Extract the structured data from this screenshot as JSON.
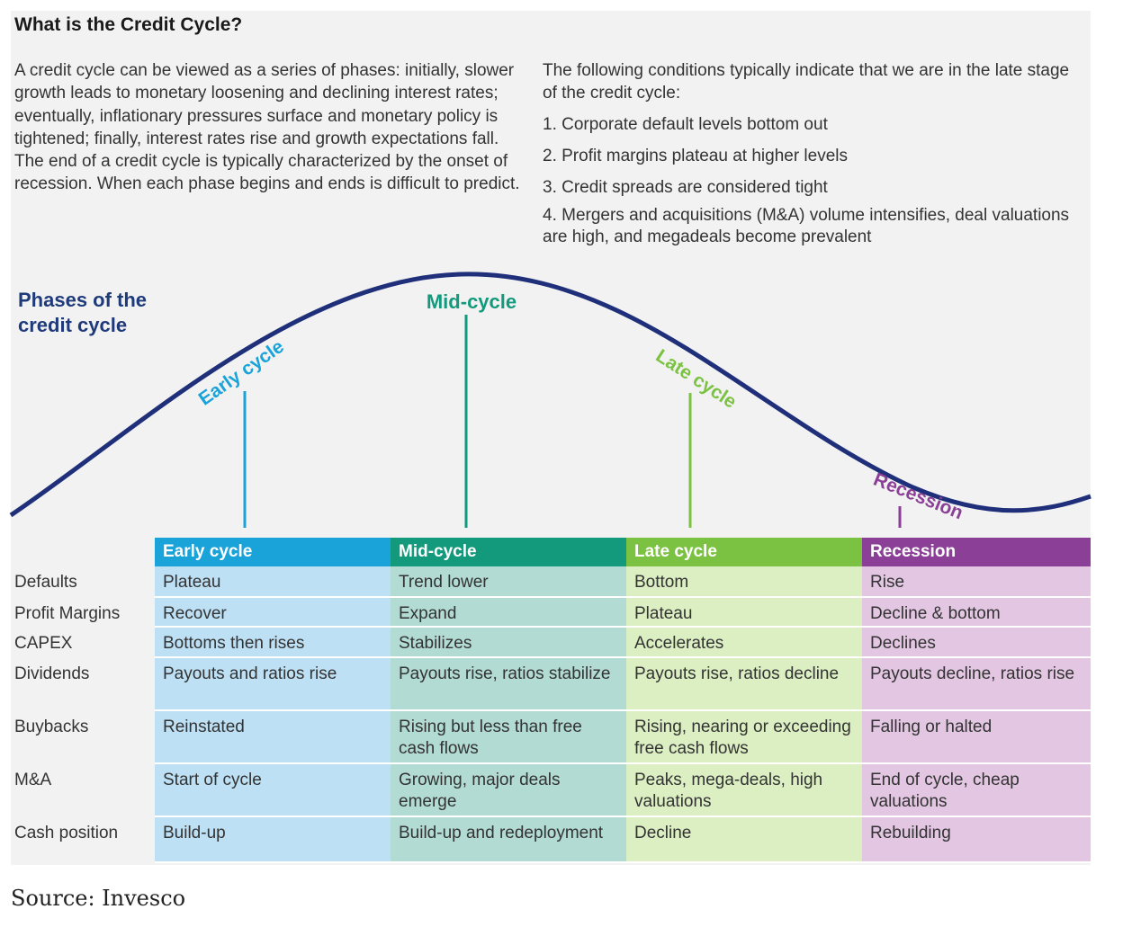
{
  "title": "What is the Credit Cycle?",
  "intro_text": "A credit cycle can be viewed as a series of phases: initially, slower growth leads to monetary loosening and declining interest rates; eventually, inflationary pressures surface and monetary policy is tightened; finally, interest rates rise and growth expectations fall. The end of a credit cycle is typically characterized by the onset of recession. When each phase begins and ends is difficult to predict.",
  "conditions": {
    "intro": "The following conditions typically indicate that we are in the late stage of the credit cycle:",
    "items": [
      "1. Corporate default levels bottom out",
      "2. Profit margins plateau at higher levels",
      "3. Credit spreads are considered tight",
      "4. Mergers and acquisitions (M&A) volume intensifies, deal valuations are high, and megadeals become prevalent"
    ]
  },
  "diagram": {
    "heading": "Phases of the credit cycle",
    "phases": [
      {
        "label": "Early cycle",
        "color": "#1aa3d9"
      },
      {
        "label": "Mid-cycle",
        "color": "#139a7c"
      },
      {
        "label": "Late cycle",
        "color": "#7cc242"
      },
      {
        "label": "Recession",
        "color": "#8b3f96"
      }
    ],
    "curve_color": "#1f2f7a"
  },
  "table": {
    "headers": [
      "Early cycle",
      "Mid-cycle",
      "Late cycle",
      "Recession"
    ],
    "rows": [
      {
        "label": "Defaults",
        "cells": [
          "Plateau",
          "Trend lower",
          "Bottom",
          "Rise"
        ]
      },
      {
        "label": "Profit Margins",
        "cells": [
          "Recover",
          "Expand",
          "Plateau",
          "Decline & bottom"
        ]
      },
      {
        "label": "CAPEX",
        "cells": [
          "Bottoms then rises",
          "Stabilizes",
          "Accelerates",
          "Declines"
        ]
      },
      {
        "label": "Dividends",
        "cells": [
          "Payouts and ratios rise",
          "Payouts rise, ratios stabilize",
          "Payouts rise, ratios decline",
          "Payouts decline, ratios rise"
        ]
      },
      {
        "label": "Buybacks",
        "cells": [
          "Reinstated",
          "Rising but less than free cash flows",
          "Rising, nearing or exceeding free cash flows",
          "Falling or halted"
        ]
      },
      {
        "label": "M&A",
        "cells": [
          "Start of cycle",
          "Growing, major deals emerge",
          "Peaks, mega-deals, high valuations",
          "End of cycle, cheap valuations"
        ]
      },
      {
        "label": "Cash position",
        "cells": [
          "Build-up",
          "Build-up and redeployment",
          "Decline",
          "Rebuilding"
        ]
      }
    ]
  },
  "source": "Source: Invesco"
}
